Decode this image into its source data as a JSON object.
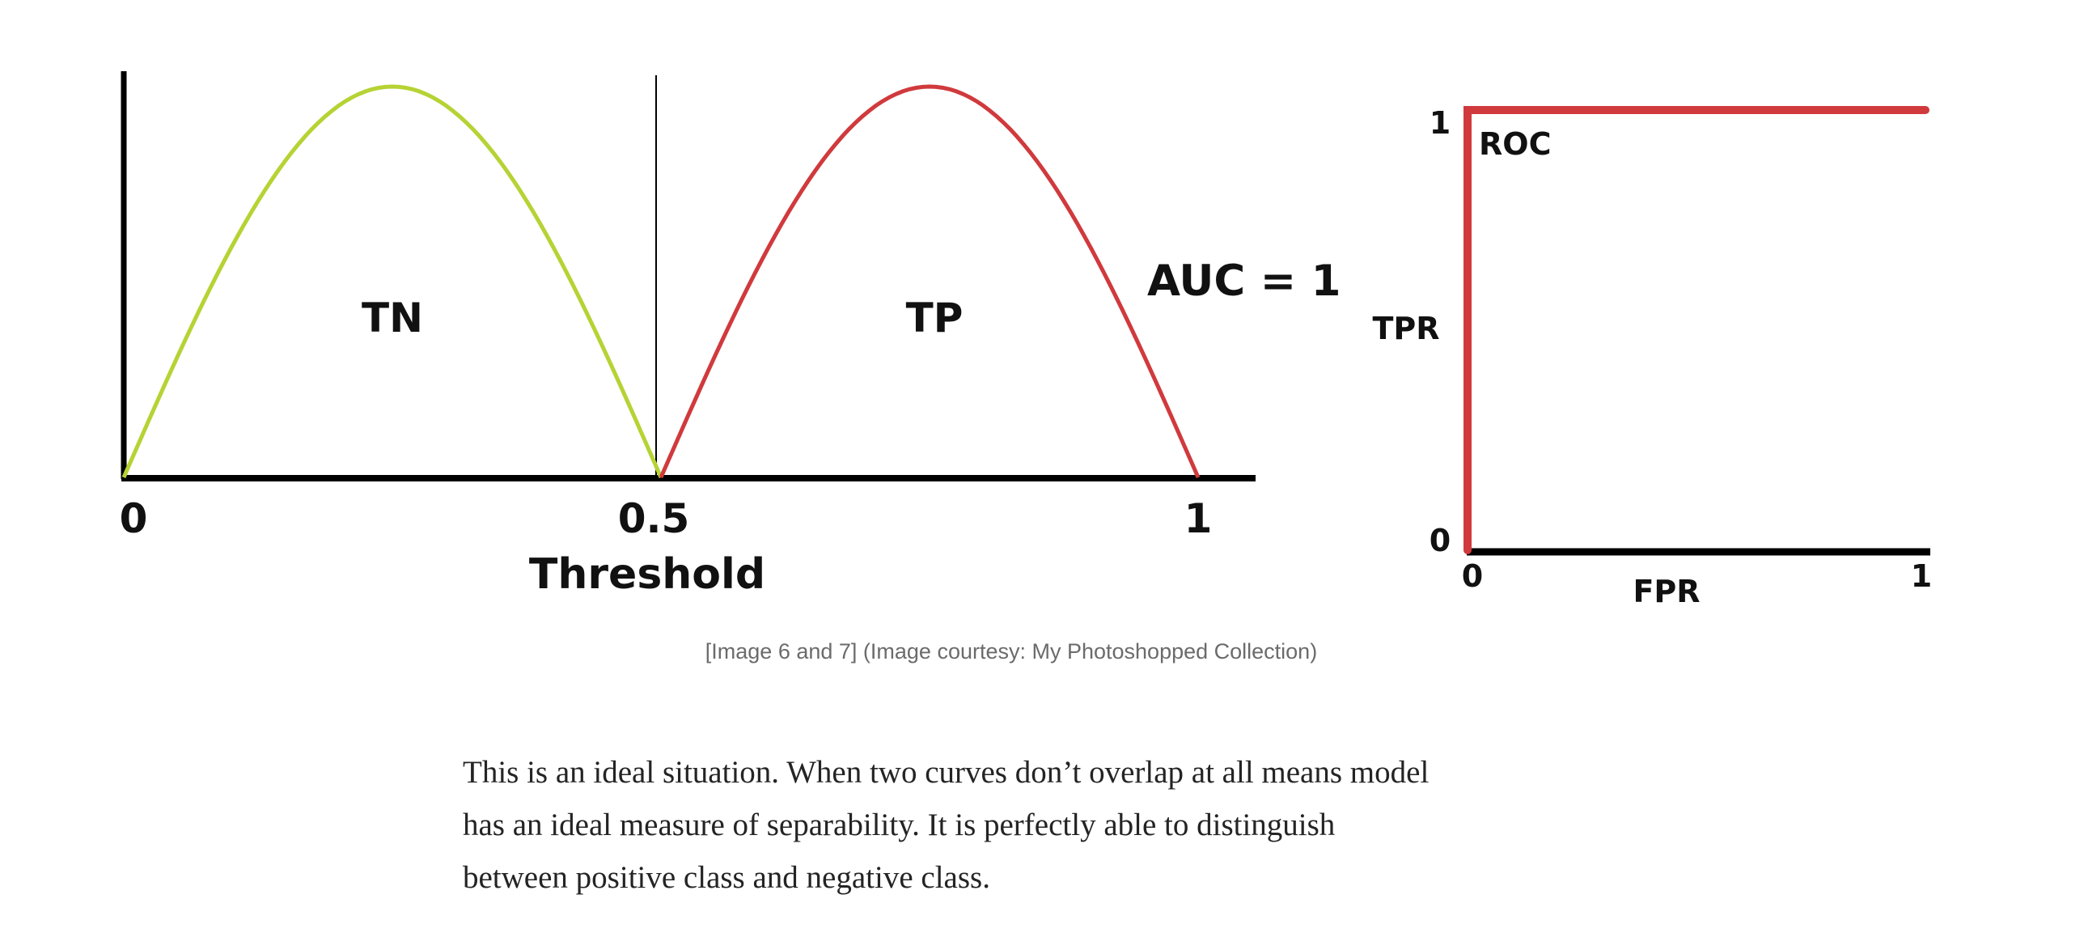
{
  "figure": {
    "distribution_chart": {
      "tn_label": "TN",
      "tp_label": "TP",
      "auc_label": "AUC = 1",
      "x_ticks": [
        "0",
        "0.5",
        "1"
      ],
      "x_label": "Threshold",
      "colors": {
        "tn_curve": "#b5d334",
        "tp_curve": "#d03a3d",
        "axis": "#000000"
      }
    },
    "roc_chart": {
      "curve_label": "ROC",
      "y_label": "TPR",
      "x_label": "FPR",
      "y_ticks": [
        "1",
        "0"
      ],
      "x_ticks": [
        "0",
        "1"
      ],
      "colors": {
        "roc_curve": "#d03a3d",
        "axis": "#000000"
      }
    },
    "caption": "[Image 6 and 7] (Image courtesy: My Photoshopped Collection)"
  },
  "chart_data": [
    {
      "type": "line",
      "xlabel": "Threshold",
      "ylabel": "",
      "xlim": [
        0,
        1
      ],
      "x_ticks": [
        0,
        0.5,
        1
      ],
      "series": [
        {
          "name": "TN",
          "x": [
            0,
            0.125,
            0.25,
            0.375,
            0.5
          ],
          "y": [
            0,
            0.71,
            1,
            0.71,
            0
          ]
        },
        {
          "name": "TP",
          "x": [
            0.5,
            0.625,
            0.75,
            0.875,
            1
          ],
          "y": [
            0,
            0.71,
            1,
            0.71,
            0
          ]
        }
      ],
      "threshold_line": 0.5,
      "annotations": [
        "TN",
        "TP",
        "AUC = 1"
      ],
      "grid": false
    },
    {
      "type": "line",
      "xlabel": "FPR",
      "ylabel": "TPR",
      "xlim": [
        0,
        1
      ],
      "ylim": [
        0,
        1
      ],
      "series": [
        {
          "name": "ROC",
          "x": [
            0,
            0,
            1
          ],
          "y": [
            0,
            1,
            1
          ]
        }
      ],
      "grid": false
    }
  ],
  "article": {
    "paragraph_lines": [
      "This is an ideal situation. When two curves don’t overlap at all means model",
      "has an ideal measure of separability. It is perfectly able to distinguish",
      "between positive class and negative class."
    ]
  }
}
